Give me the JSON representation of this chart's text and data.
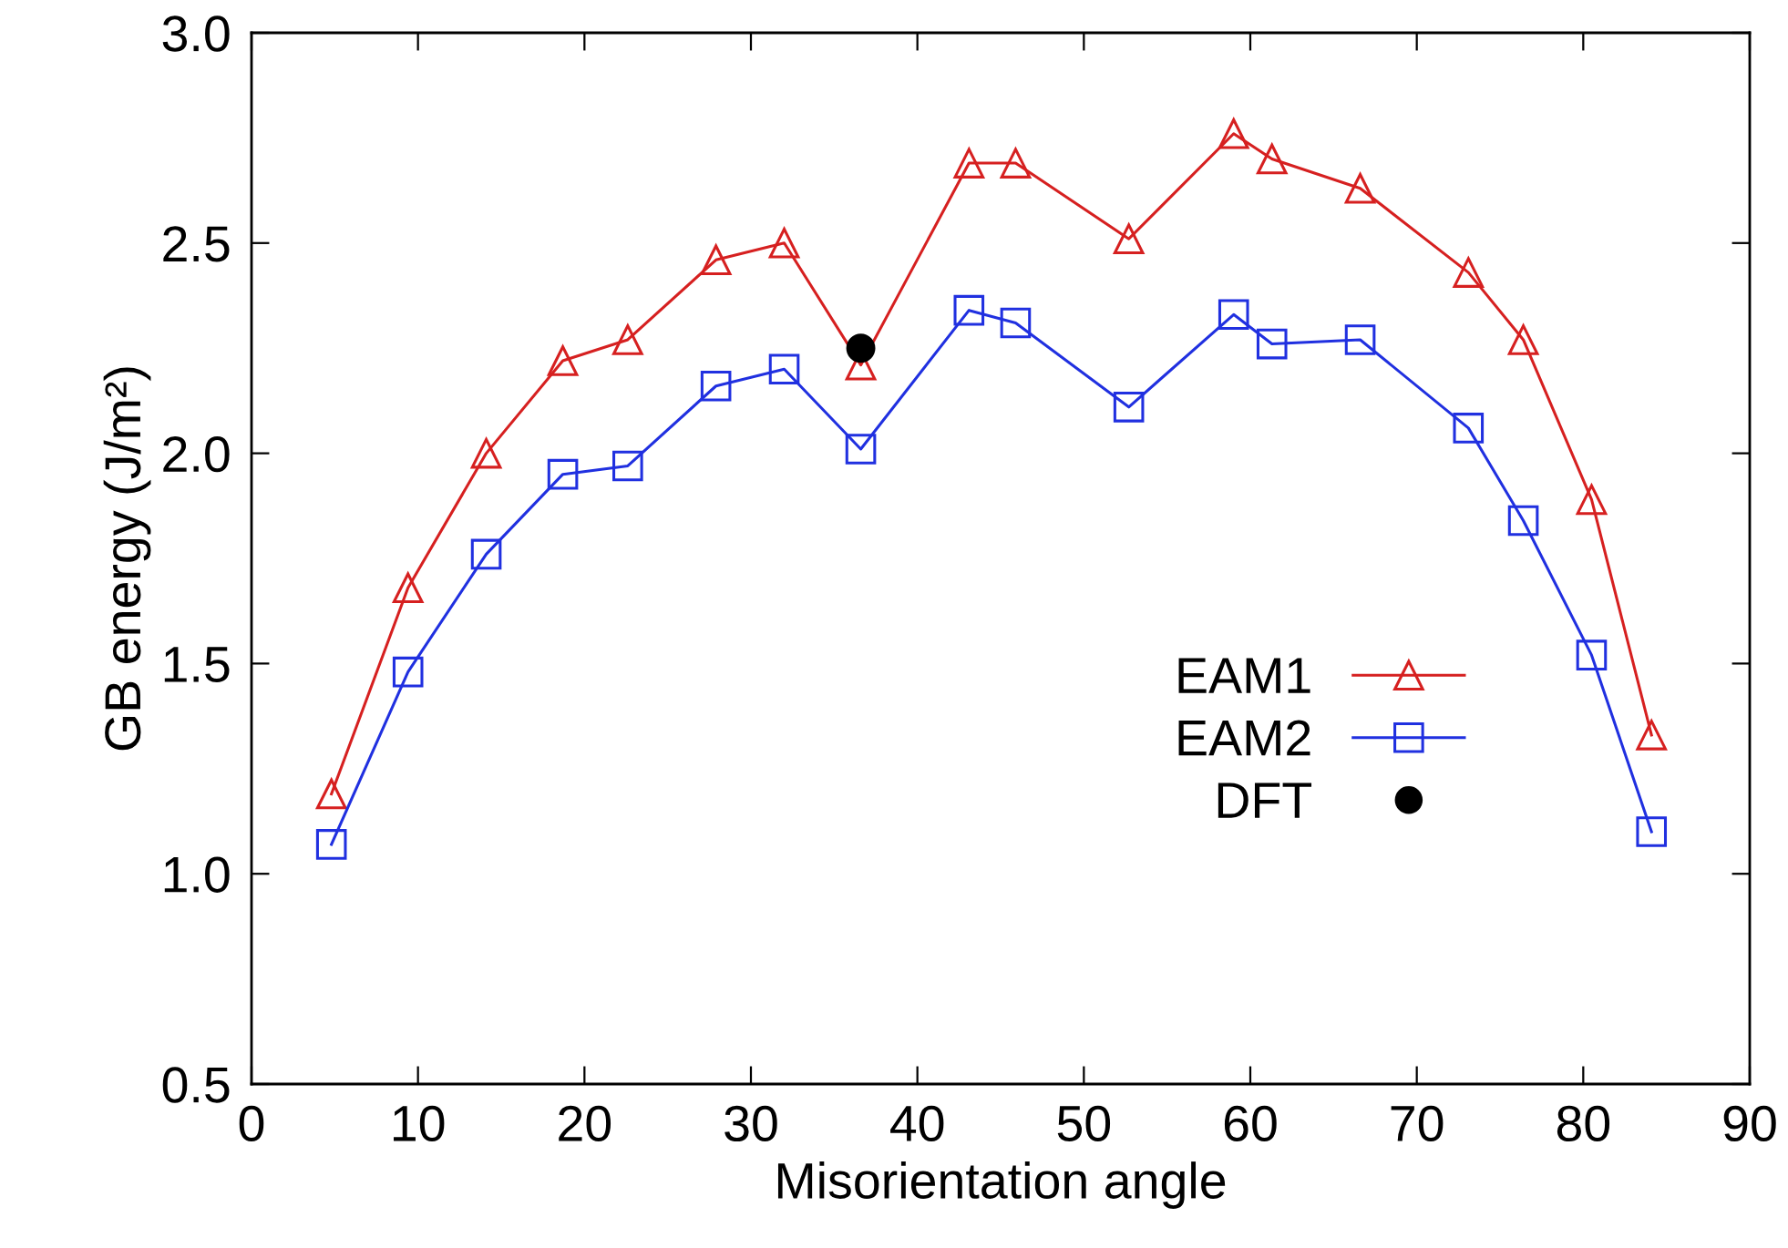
{
  "chart_data": {
    "type": "line",
    "xlabel": "Misorientation angle",
    "ylabel": "GB energy (J/m²)",
    "xlim": [
      0,
      90
    ],
    "xticks": [
      0,
      10,
      20,
      30,
      40,
      50,
      60,
      70,
      80,
      90
    ],
    "ylim": [
      0.5,
      3.0
    ],
    "yticks": [
      {
        "value": 0.5,
        "label": "0.5"
      },
      {
        "value": 1.0,
        "label": "1.0"
      },
      {
        "value": 1.5,
        "label": "1.5"
      },
      {
        "value": 2.0,
        "label": "2.0"
      },
      {
        "value": 2.5,
        "label": "2.5"
      },
      {
        "value": 3.0,
        "label": "3.0"
      }
    ],
    "grid": false,
    "legend": "bottom right",
    "x": [
      4.8,
      9.4,
      14.1,
      18.7,
      22.6,
      27.9,
      32.0,
      36.6,
      43.1,
      45.9,
      52.7,
      59.0,
      61.3,
      66.6,
      73.1,
      76.4,
      80.5,
      84.1
    ],
    "series": [
      {
        "name": "EAM1",
        "color": "#d62020",
        "marker": "triangle",
        "values": [
          1.19,
          1.68,
          2.0,
          2.22,
          2.27,
          2.46,
          2.5,
          2.21,
          2.69,
          2.69,
          2.51,
          2.76,
          2.7,
          2.63,
          2.43,
          2.27,
          1.89,
          1.33
        ]
      },
      {
        "name": "EAM2",
        "color": "#2030e0",
        "marker": "square",
        "values": [
          1.07,
          1.48,
          1.76,
          1.95,
          1.97,
          2.16,
          2.2,
          2.01,
          2.34,
          2.31,
          2.11,
          2.33,
          2.26,
          2.27,
          2.06,
          1.84,
          1.52,
          1.1
        ]
      },
      {
        "name": "DFT",
        "type": "scatter",
        "color": "#000000",
        "marker": "circle",
        "x": [
          36.6
        ],
        "values": [
          2.25
        ]
      }
    ]
  }
}
